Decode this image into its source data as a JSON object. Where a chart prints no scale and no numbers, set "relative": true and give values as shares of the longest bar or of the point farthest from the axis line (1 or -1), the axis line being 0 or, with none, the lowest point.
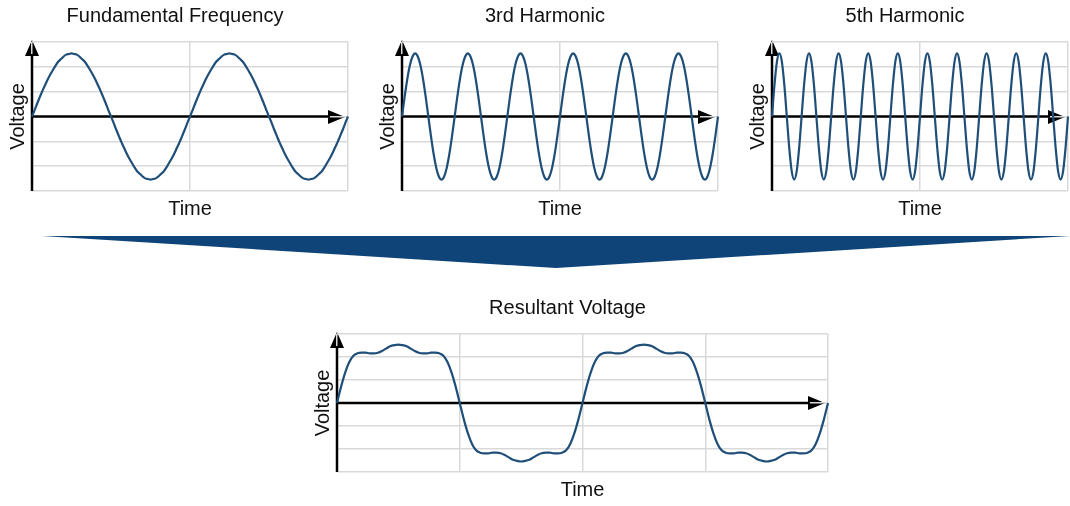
{
  "chart_data": [
    {
      "type": "line",
      "title": "Fundamental Frequency",
      "xlabel": "Time",
      "ylabel": "Voltage",
      "relative": true,
      "grid": true,
      "marker": "none",
      "color": "#1f4e79",
      "categories": [
        null,
        null,
        null,
        null,
        null,
        null,
        null,
        null,
        null,
        null,
        null,
        null,
        null,
        null,
        null,
        null,
        null,
        null,
        null,
        null,
        null,
        null,
        null,
        null,
        null,
        null,
        null,
        null,
        null,
        null,
        null,
        null,
        null,
        null,
        null,
        null,
        null,
        null,
        null,
        null,
        null,
        null,
        null,
        null,
        null,
        null,
        null,
        null,
        null,
        null,
        null,
        null,
        null,
        null,
        null,
        null,
        null,
        null,
        null,
        null,
        null,
        null,
        null,
        null,
        null,
        null,
        null,
        null,
        null,
        null,
        null,
        null,
        null,
        null,
        null,
        null,
        null,
        null,
        null,
        null,
        null,
        null,
        null,
        null,
        null,
        null,
        null,
        null,
        null,
        null,
        null,
        null,
        null,
        null,
        null,
        null,
        null,
        null,
        null,
        null,
        null,
        null,
        null,
        null,
        null,
        null,
        null,
        null,
        null,
        null,
        null,
        null,
        null,
        null,
        null,
        null,
        null,
        null,
        null,
        null,
        null
      ],
      "values": [
        0,
        0.1,
        0.21,
        0.31,
        0.41,
        0.5,
        0.59,
        0.67,
        0.74,
        0.81,
        0.87,
        0.91,
        0.95,
        0.98,
        0.99,
        1,
        0.99,
        0.98,
        0.95,
        0.91,
        0.87,
        0.81,
        0.74,
        0.67,
        0.59,
        0.5,
        0.41,
        0.31,
        0.21,
        0.1,
        0,
        -0.1,
        -0.21,
        -0.31,
        -0.41,
        -0.5,
        -0.59,
        -0.67,
        -0.74,
        -0.81,
        -0.87,
        -0.91,
        -0.95,
        -0.98,
        -0.99,
        -1,
        -0.99,
        -0.98,
        -0.95,
        -0.91,
        -0.87,
        -0.81,
        -0.74,
        -0.67,
        -0.59,
        -0.5,
        -0.41,
        -0.31,
        -0.21,
        -0.1,
        0,
        0.1,
        0.21,
        0.31,
        0.41,
        0.5,
        0.59,
        0.67,
        0.74,
        0.81,
        0.87,
        0.91,
        0.95,
        0.98,
        0.99,
        1,
        0.99,
        0.98,
        0.95,
        0.91,
        0.87,
        0.81,
        0.74,
        0.67,
        0.59,
        0.5,
        0.41,
        0.31,
        0.21,
        0.1,
        0,
        -0.1,
        -0.21,
        -0.31,
        -0.41,
        -0.5,
        -0.59,
        -0.67,
        -0.74,
        -0.81,
        -0.87,
        -0.91,
        -0.95,
        -0.98,
        -0.99,
        -1,
        -0.99,
        -0.98,
        -0.95,
        -0.91,
        -0.87,
        -0.81,
        -0.74,
        -0.67,
        -0.59,
        -0.5,
        -0.41,
        -0.31,
        -0.21,
        -0.1,
        0
      ]
    },
    {
      "type": "line",
      "title": "3rd Harmonic",
      "xlabel": "Time",
      "ylabel": "Voltage",
      "relative": true,
      "grid": true,
      "marker": "none",
      "color": "#1f4e79",
      "categories": [
        null,
        null,
        null,
        null,
        null,
        null,
        null,
        null,
        null,
        null,
        null,
        null,
        null,
        null,
        null,
        null,
        null,
        null,
        null,
        null,
        null,
        null,
        null,
        null,
        null,
        null,
        null,
        null,
        null,
        null,
        null,
        null,
        null,
        null,
        null,
        null,
        null,
        null,
        null,
        null,
        null,
        null,
        null,
        null,
        null,
        null,
        null,
        null,
        null,
        null,
        null,
        null,
        null,
        null,
        null,
        null,
        null,
        null,
        null,
        null,
        null,
        null,
        null,
        null,
        null,
        null,
        null,
        null,
        null,
        null,
        null,
        null,
        null,
        null,
        null,
        null,
        null,
        null,
        null,
        null,
        null,
        null,
        null,
        null,
        null,
        null,
        null,
        null,
        null,
        null,
        null,
        null,
        null,
        null,
        null,
        null,
        null,
        null,
        null,
        null,
        null,
        null,
        null,
        null,
        null,
        null,
        null,
        null,
        null,
        null,
        null,
        null,
        null,
        null,
        null,
        null,
        null,
        null,
        null,
        null,
        null
      ],
      "values": [
        0,
        0.31,
        0.59,
        0.81,
        0.95,
        1,
        0.95,
        0.81,
        0.59,
        0.31,
        0,
        -0.31,
        -0.59,
        -0.81,
        -0.95,
        -1,
        -0.95,
        -0.81,
        -0.59,
        -0.31,
        0,
        0.31,
        0.59,
        0.81,
        0.95,
        1,
        0.95,
        0.81,
        0.59,
        0.31,
        0,
        -0.31,
        -0.59,
        -0.81,
        -0.95,
        -1,
        -0.95,
        -0.81,
        -0.59,
        -0.31,
        0,
        0.31,
        0.59,
        0.81,
        0.95,
        1,
        0.95,
        0.81,
        0.59,
        0.31,
        0,
        -0.31,
        -0.59,
        -0.81,
        -0.95,
        -1,
        -0.95,
        -0.81,
        -0.59,
        -0.31,
        0,
        0.31,
        0.59,
        0.81,
        0.95,
        1,
        0.95,
        0.81,
        0.59,
        0.31,
        0,
        -0.31,
        -0.59,
        -0.81,
        -0.95,
        -1,
        -0.95,
        -0.81,
        -0.59,
        -0.31,
        0,
        0.31,
        0.59,
        0.81,
        0.95,
        1,
        0.95,
        0.81,
        0.59,
        0.31,
        0,
        -0.31,
        -0.59,
        -0.81,
        -0.95,
        -1,
        -0.95,
        -0.81,
        -0.59,
        -0.31,
        0,
        0.31,
        0.59,
        0.81,
        0.95,
        1,
        0.95,
        0.81,
        0.59,
        0.31,
        0,
        -0.31,
        -0.59,
        -0.81,
        -0.95,
        -1,
        -0.95,
        -0.81,
        -0.59,
        -0.31,
        0
      ]
    },
    {
      "type": "line",
      "title": "5th Harmonic",
      "xlabel": "Time",
      "ylabel": "Voltage",
      "relative": true,
      "grid": true,
      "marker": "none",
      "color": "#1f4e79",
      "categories": [
        null,
        null,
        null,
        null,
        null,
        null,
        null,
        null,
        null,
        null,
        null,
        null,
        null,
        null,
        null,
        null,
        null,
        null,
        null,
        null,
        null,
        null,
        null,
        null,
        null,
        null,
        null,
        null,
        null,
        null,
        null,
        null,
        null,
        null,
        null,
        null,
        null,
        null,
        null,
        null,
        null,
        null,
        null,
        null,
        null,
        null,
        null,
        null,
        null,
        null,
        null,
        null,
        null,
        null,
        null,
        null,
        null,
        null,
        null,
        null,
        null,
        null,
        null,
        null,
        null,
        null,
        null,
        null,
        null,
        null,
        null,
        null,
        null,
        null,
        null,
        null,
        null,
        null,
        null,
        null,
        null,
        null,
        null,
        null,
        null,
        null,
        null,
        null,
        null,
        null,
        null,
        null,
        null,
        null,
        null,
        null,
        null,
        null,
        null,
        null,
        null,
        null,
        null,
        null,
        null,
        null,
        null,
        null,
        null,
        null,
        null,
        null,
        null,
        null,
        null,
        null,
        null,
        null,
        null,
        null,
        null
      ],
      "values": [
        0,
        0.5,
        0.87,
        1,
        0.87,
        0.5,
        0,
        -0.5,
        -0.87,
        -1,
        -0.87,
        -0.5,
        0,
        0.5,
        0.87,
        1,
        0.87,
        0.5,
        0,
        -0.5,
        -0.87,
        -1,
        -0.87,
        -0.5,
        0,
        0.5,
        0.87,
        1,
        0.87,
        0.5,
        0,
        -0.5,
        -0.87,
        -1,
        -0.87,
        -0.5,
        0,
        0.5,
        0.87,
        1,
        0.87,
        0.5,
        0,
        -0.5,
        -0.87,
        -1,
        -0.87,
        -0.5,
        0,
        0.5,
        0.87,
        1,
        0.87,
        0.5,
        0,
        -0.5,
        -0.87,
        -1,
        -0.87,
        -0.5,
        0,
        0.5,
        0.87,
        1,
        0.87,
        0.5,
        0,
        -0.5,
        -0.87,
        -1,
        -0.87,
        -0.5,
        0,
        0.5,
        0.87,
        1,
        0.87,
        0.5,
        0,
        -0.5,
        -0.87,
        -1,
        -0.87,
        -0.5,
        0,
        0.5,
        0.87,
        1,
        0.87,
        0.5,
        0,
        -0.5,
        -0.87,
        -1,
        -0.87,
        -0.5,
        0,
        0.5,
        0.87,
        1,
        0.87,
        0.5,
        0,
        -0.5,
        -0.87,
        -1,
        -0.87,
        -0.5,
        0,
        0.5,
        0.87,
        1,
        0.87,
        0.5,
        0,
        -0.5,
        -0.87,
        -1,
        -0.87,
        -0.5,
        0
      ]
    },
    {
      "type": "line",
      "title": "Resultant Voltage",
      "xlabel": "Time",
      "ylabel": "Voltage",
      "relative": true,
      "grid": true,
      "marker": "none",
      "color": "#1f4e79",
      "categories": [
        null,
        null,
        null,
        null,
        null,
        null,
        null,
        null,
        null,
        null,
        null,
        null,
        null,
        null,
        null,
        null,
        null,
        null,
        null,
        null,
        null,
        null,
        null,
        null,
        null,
        null,
        null,
        null,
        null,
        null,
        null,
        null,
        null,
        null,
        null,
        null,
        null,
        null,
        null,
        null,
        null,
        null,
        null,
        null,
        null,
        null,
        null,
        null,
        null,
        null,
        null,
        null,
        null,
        null,
        null,
        null,
        null,
        null,
        null,
        null,
        null,
        null,
        null,
        null,
        null,
        null,
        null,
        null,
        null,
        null,
        null,
        null,
        null,
        null,
        null,
        null,
        null,
        null,
        null,
        null,
        null,
        null,
        null,
        null,
        null,
        null,
        null,
        null,
        null,
        null,
        null,
        null,
        null,
        null,
        null,
        null,
        null,
        null,
        null,
        null,
        null,
        null,
        null,
        null,
        null,
        null,
        null,
        null,
        null,
        null,
        null,
        null,
        null,
        null,
        null,
        null,
        null,
        null,
        null,
        null,
        null
      ],
      "values": [
        0,
        0.28,
        0.52,
        0.7,
        0.81,
        0.85,
        0.86,
        0.86,
        0.85,
        0.85,
        0.86,
        0.89,
        0.93,
        0.97,
        0.99,
        1,
        0.99,
        0.97,
        0.93,
        0.89,
        0.86,
        0.85,
        0.85,
        0.86,
        0.86,
        0.85,
        0.81,
        0.7,
        0.52,
        0.28,
        0,
        -0.28,
        -0.52,
        -0.7,
        -0.81,
        -0.85,
        -0.86,
        -0.86,
        -0.85,
        -0.85,
        -0.86,
        -0.89,
        -0.93,
        -0.97,
        -0.99,
        -1,
        -0.99,
        -0.97,
        -0.93,
        -0.89,
        -0.86,
        -0.85,
        -0.85,
        -0.86,
        -0.86,
        -0.85,
        -0.81,
        -0.7,
        -0.52,
        -0.28,
        0,
        0.28,
        0.52,
        0.7,
        0.81,
        0.85,
        0.86,
        0.86,
        0.85,
        0.85,
        0.86,
        0.89,
        0.93,
        0.97,
        0.99,
        1,
        0.99,
        0.97,
        0.93,
        0.89,
        0.86,
        0.85,
        0.85,
        0.86,
        0.86,
        0.85,
        0.81,
        0.7,
        0.52,
        0.28,
        0,
        -0.28,
        -0.52,
        -0.7,
        -0.81,
        -0.85,
        -0.86,
        -0.86,
        -0.85,
        -0.85,
        -0.86,
        -0.89,
        -0.93,
        -0.97,
        -0.99,
        -1,
        -0.99,
        -0.97,
        -0.93,
        -0.89,
        -0.86,
        -0.85,
        -0.85,
        -0.86,
        -0.86,
        -0.85,
        -0.81,
        -0.7,
        -0.52,
        -0.28,
        0
      ]
    }
  ]
}
